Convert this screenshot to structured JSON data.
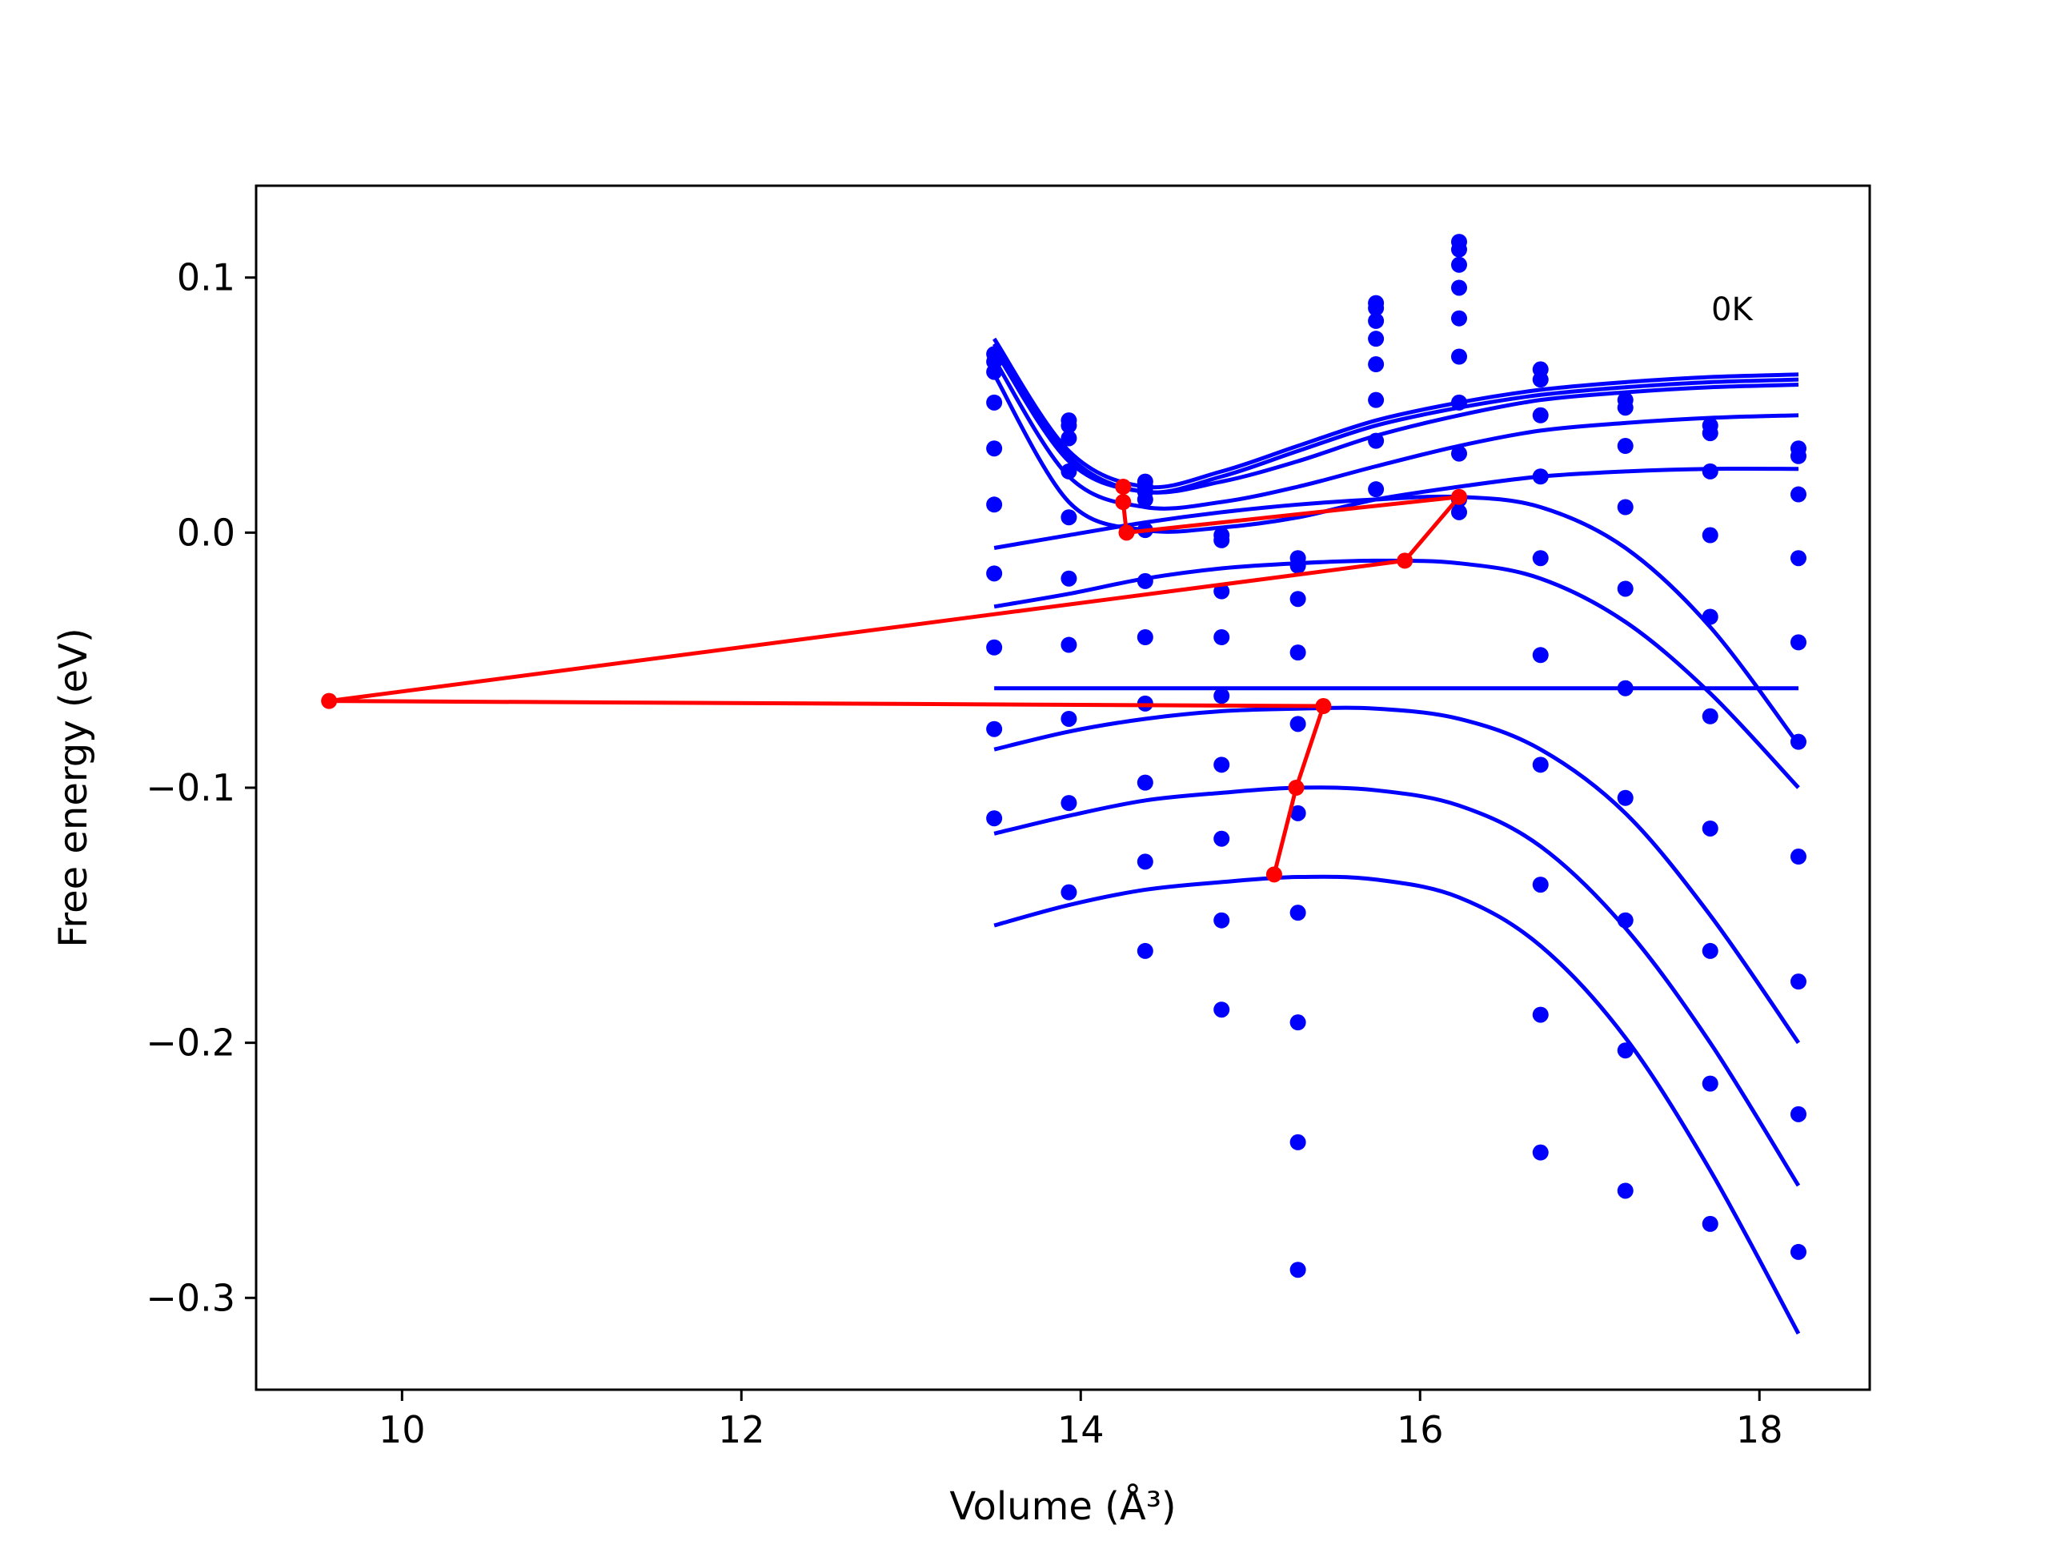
{
  "chart_data": {
    "type": "scatter",
    "xlabel": "Volume (Å³)",
    "ylabel": "Free energy (eV)",
    "annotation": "0K",
    "xlim": [
      9.14,
      18.65
    ],
    "ylim": [
      -0.336,
      0.136
    ],
    "xticks": [
      10,
      12,
      14,
      16,
      18
    ],
    "xtick_labels": [
      "10",
      "12",
      "14",
      "16",
      "18"
    ],
    "yticks": [
      0.1,
      0.0,
      -0.1,
      -0.2,
      -0.3
    ],
    "ytick_labels": [
      "0.1",
      "0.0",
      "−0.1",
      "−0.2",
      "−0.3"
    ],
    "grid": false,
    "colors": {
      "points": "#0000ff",
      "curves": "#0000ff",
      "path": "#ff0000"
    },
    "points_x": [
      13.49,
      13.93,
      14.38,
      14.83,
      15.28,
      15.74,
      16.23,
      16.71,
      17.21,
      17.71,
      18.23
    ],
    "points": [
      {
        "x": 13.49,
        "y": [
          0.07,
          0.067,
          0.063,
          0.051,
          0.033,
          0.011,
          -0.016,
          -0.045,
          -0.077,
          -0.112
        ]
      },
      {
        "x": 13.93,
        "y": [
          0.044,
          0.042,
          0.037,
          0.024,
          0.006,
          -0.018,
          -0.044,
          -0.073,
          -0.106,
          -0.141
        ]
      },
      {
        "x": 14.38,
        "y": [
          0.02,
          0.018,
          0.016,
          0.013,
          0.001,
          -0.019,
          -0.041,
          -0.067,
          -0.098,
          -0.129,
          -0.164
        ]
      },
      {
        "x": 14.83,
        "y": [
          -0.001,
          -0.003,
          -0.023,
          -0.041,
          -0.064,
          -0.091,
          -0.12,
          -0.152,
          -0.187
        ]
      },
      {
        "x": 15.28,
        "y": [
          -0.01,
          -0.013,
          -0.026,
          -0.047,
          -0.075,
          -0.11,
          -0.149,
          -0.192,
          -0.239,
          -0.289
        ]
      },
      {
        "x": 15.74,
        "y": [
          0.09,
          0.088,
          0.083,
          0.076,
          0.066,
          0.052,
          0.036,
          0.017
        ]
      },
      {
        "x": 16.23,
        "y": [
          0.114,
          0.111,
          0.105,
          0.096,
          0.084,
          0.069,
          0.051,
          0.031,
          0.013,
          0.008
        ]
      },
      {
        "x": 16.71,
        "y": [
          0.064,
          0.06,
          0.046,
          0.022,
          -0.01,
          -0.048,
          -0.091,
          -0.138,
          -0.189,
          -0.243
        ]
      },
      {
        "x": 17.21,
        "y": [
          0.052,
          0.049,
          0.034,
          0.01,
          -0.022,
          -0.061,
          -0.104,
          -0.152,
          -0.203,
          -0.258
        ]
      },
      {
        "x": 17.71,
        "y": [
          0.042,
          0.039,
          0.024,
          -0.001,
          -0.033,
          -0.072,
          -0.116,
          -0.164,
          -0.216,
          -0.271
        ]
      },
      {
        "x": 18.23,
        "y": [
          0.033,
          0.03,
          0.015,
          -0.01,
          -0.043,
          -0.082,
          -0.127,
          -0.176,
          -0.228,
          -0.282
        ]
      }
    ],
    "curves": [
      {
        "x": [
          13.49,
          13.93,
          14.38,
          14.83,
          15.28,
          15.74,
          16.23,
          16.71,
          17.21,
          17.71,
          18.23
        ],
        "y": [
          0.076,
          0.032,
          0.018,
          0.024,
          0.034,
          0.044,
          0.051,
          0.056,
          0.059,
          0.061,
          0.062
        ]
      },
      {
        "x": [
          13.49,
          13.93,
          14.38,
          14.83,
          15.28,
          15.74,
          16.23,
          16.71,
          17.21,
          17.71,
          18.23
        ],
        "y": [
          0.074,
          0.03,
          0.016,
          0.022,
          0.032,
          0.042,
          0.049,
          0.054,
          0.057,
          0.059,
          0.06
        ]
      },
      {
        "x": [
          13.49,
          13.93,
          14.38,
          14.83,
          15.28,
          15.74,
          16.23,
          16.71,
          17.21,
          17.71,
          18.23
        ],
        "y": [
          0.072,
          0.028,
          0.016,
          0.02,
          0.028,
          0.038,
          0.046,
          0.052,
          0.055,
          0.057,
          0.058
        ]
      },
      {
        "x": [
          13.49,
          13.93,
          14.38,
          14.83,
          15.28,
          15.74,
          16.23,
          16.71,
          17.21,
          17.71,
          18.23
        ],
        "y": [
          0.068,
          0.022,
          0.01,
          0.012,
          0.018,
          0.026,
          0.034,
          0.04,
          0.043,
          0.045,
          0.046
        ]
      },
      {
        "x": [
          13.49,
          13.93,
          14.38,
          14.83,
          15.28,
          15.74,
          16.23,
          16.71,
          17.21,
          17.71,
          18.23
        ],
        "y": [
          0.062,
          0.012,
          0.001,
          0.002,
          0.006,
          0.013,
          0.018,
          0.022,
          0.024,
          0.025,
          0.025
        ]
      },
      {
        "x": [
          13.49,
          13.93,
          14.38,
          14.83,
          15.28,
          15.74,
          16.23,
          16.71,
          17.21,
          17.71,
          18.23
        ],
        "y": [
          -0.006,
          -0.001,
          0.004,
          0.008,
          0.011,
          0.013,
          0.014,
          0.01,
          -0.006,
          -0.037,
          -0.083
        ]
      },
      {
        "x": [
          13.49,
          13.93,
          14.38,
          14.83,
          15.28,
          15.74,
          16.23,
          16.71,
          17.21,
          17.71,
          18.23
        ],
        "y": [
          -0.029,
          -0.024,
          -0.018,
          -0.014,
          -0.012,
          -0.011,
          -0.012,
          -0.018,
          -0.035,
          -0.063,
          -0.1
        ]
      },
      {
        "x": [
          13.49,
          18.23
        ],
        "y": [
          -0.061,
          -0.061
        ]
      },
      {
        "x": [
          13.49,
          13.93,
          14.38,
          14.83,
          15.28,
          15.74,
          16.23,
          16.71,
          17.21,
          17.71,
          18.23
        ],
        "y": [
          -0.085,
          -0.078,
          -0.073,
          -0.07,
          -0.069,
          -0.069,
          -0.073,
          -0.085,
          -0.11,
          -0.15,
          -0.2
        ]
      },
      {
        "x": [
          13.49,
          13.93,
          14.38,
          14.83,
          15.28,
          15.74,
          16.23,
          16.71,
          17.21,
          17.71,
          18.23
        ],
        "y": [
          -0.118,
          -0.111,
          -0.105,
          -0.102,
          -0.1,
          -0.101,
          -0.107,
          -0.123,
          -0.155,
          -0.2,
          -0.256
        ]
      },
      {
        "x": [
          13.49,
          13.93,
          14.38,
          14.83,
          15.28,
          15.74,
          16.23,
          16.71,
          17.21,
          17.71,
          18.23
        ],
        "y": [
          -0.154,
          -0.146,
          -0.14,
          -0.137,
          -0.135,
          -0.136,
          -0.143,
          -0.162,
          -0.198,
          -0.25,
          -0.314
        ]
      }
    ],
    "path": {
      "x": [
        14.25,
        14.25,
        14.27,
        16.23,
        15.91,
        9.57,
        15.43,
        15.27,
        15.14
      ],
      "y": [
        0.018,
        0.012,
        0.0,
        0.014,
        -0.011,
        -0.066,
        -0.068,
        -0.1,
        -0.134
      ]
    }
  }
}
